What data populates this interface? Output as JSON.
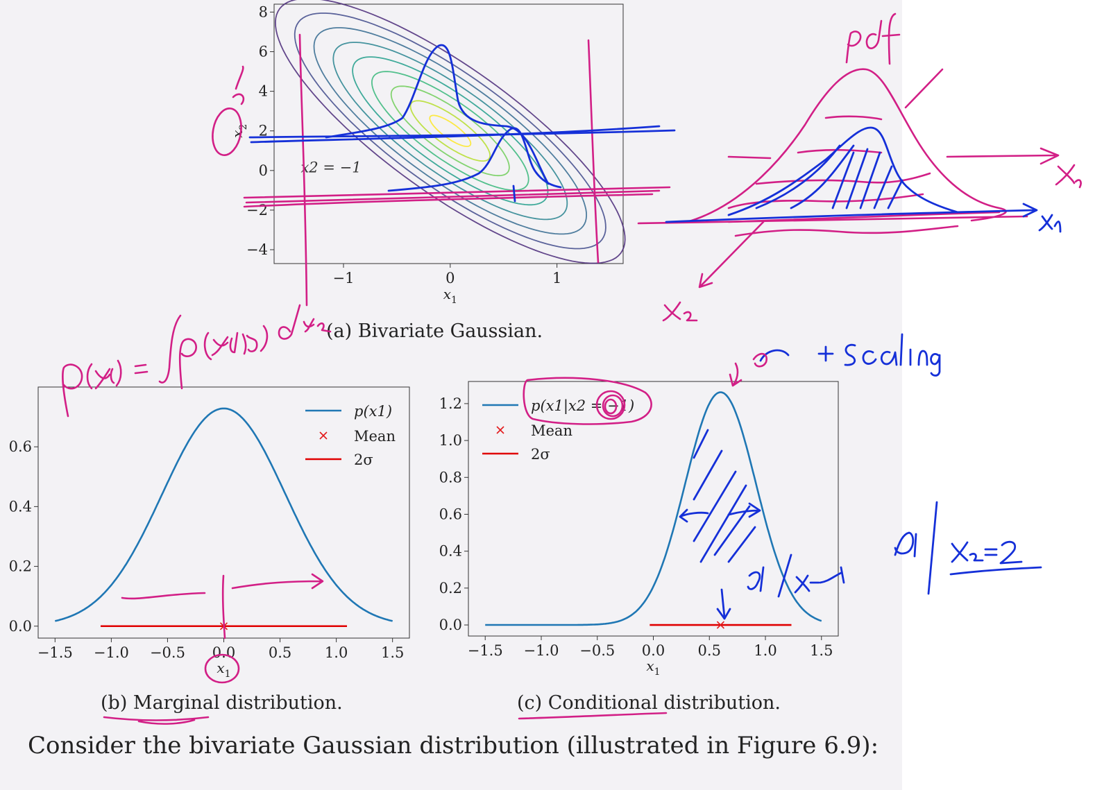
{
  "captions": {
    "a": "(a) Bivariate Gaussian.",
    "b": "(b) Marginal distribution.",
    "c": "(c) Conditional distribution."
  },
  "body_text": "Consider the bivariate Gaussian distribution (illustrated in Figure 6.9):",
  "colors": {
    "pink_ink": "#d21f86",
    "blue_ink": "#1530d8",
    "curve": "#1f77b4",
    "mean": "#e31a1c",
    "sigma": "#e00000"
  },
  "chart_data": [
    {
      "id": "a",
      "type": "contour",
      "xlabel": "x1",
      "ylabel": "x2",
      "xlim": [
        -1.65,
        1.62
      ],
      "ylim": [
        -4.7,
        8.4
      ],
      "xticks": [
        -1,
        0,
        1
      ],
      "yticks": [
        -4,
        -2,
        0,
        2,
        4,
        6,
        8
      ],
      "xtick_labels": [
        "−1",
        "0",
        "1"
      ],
      "ytick_labels": [
        "−4",
        "−2",
        "0",
        "2",
        "4",
        "6",
        "8"
      ],
      "annotation": "x2 = −1",
      "annotation_at": [
        -1.4,
        -0.1
      ],
      "mean": [
        0,
        2
      ],
      "cov": [
        [
          0.3,
          -1
        ],
        [
          -1,
          5
        ]
      ],
      "contour_levels": 9,
      "slice_line_y": -1
    },
    {
      "id": "b",
      "type": "line",
      "xlabel": "x1",
      "ylabel": "",
      "xlim": [
        -1.65,
        1.65
      ],
      "ylim": [
        -0.04,
        0.8
      ],
      "xticks": [
        -1.5,
        -1.0,
        -0.5,
        0.0,
        0.5,
        1.0,
        1.5
      ],
      "xtick_labels": [
        "−1.5",
        "−1.0",
        "−0.5",
        "0.0",
        "0.5",
        "1.0",
        "1.5"
      ],
      "yticks": [
        0.0,
        0.2,
        0.4,
        0.6
      ],
      "ytick_labels": [
        "0.0",
        "0.2",
        "0.4",
        "0.6"
      ],
      "series": [
        {
          "name": "p(x1)",
          "distribution": "normal",
          "mean": 0.0,
          "sd": 0.5477,
          "x_range": [
            -1.5,
            1.5
          ]
        }
      ],
      "mean_marker": {
        "name": "Mean",
        "x": 0.0,
        "y": 0.0
      },
      "two_sigma": {
        "name": "2σ",
        "from": -1.095,
        "to": 1.095,
        "y": 0.0
      },
      "legend": "top-right"
    },
    {
      "id": "c",
      "type": "line",
      "xlabel": "x1",
      "ylabel": "",
      "xlim": [
        -1.65,
        1.65
      ],
      "ylim": [
        -0.06,
        1.32
      ],
      "xticks": [
        -1.5,
        -1.0,
        -0.5,
        0.0,
        0.5,
        1.0,
        1.5
      ],
      "xtick_labels": [
        "−1.5",
        "−1.0",
        "−0.5",
        "0.0",
        "0.5",
        "1.0",
        "1.5"
      ],
      "yticks": [
        0.0,
        0.2,
        0.4,
        0.6,
        0.8,
        1.0,
        1.2
      ],
      "ytick_labels": [
        "0.0",
        "0.2",
        "0.4",
        "0.6",
        "0.8",
        "1.0",
        "1.2"
      ],
      "series": [
        {
          "name": "p(x1|x2 = −1)",
          "distribution": "normal",
          "mean": 0.6,
          "sd": 0.3162,
          "x_range": [
            -1.5,
            1.5
          ]
        }
      ],
      "mean_marker": {
        "name": "Mean",
        "x": 0.6,
        "y": 0.0
      },
      "two_sigma": {
        "name": "2σ",
        "from": -0.032,
        "to": 1.232,
        "y": 0.0
      },
      "legend": "top-left"
    }
  ]
}
